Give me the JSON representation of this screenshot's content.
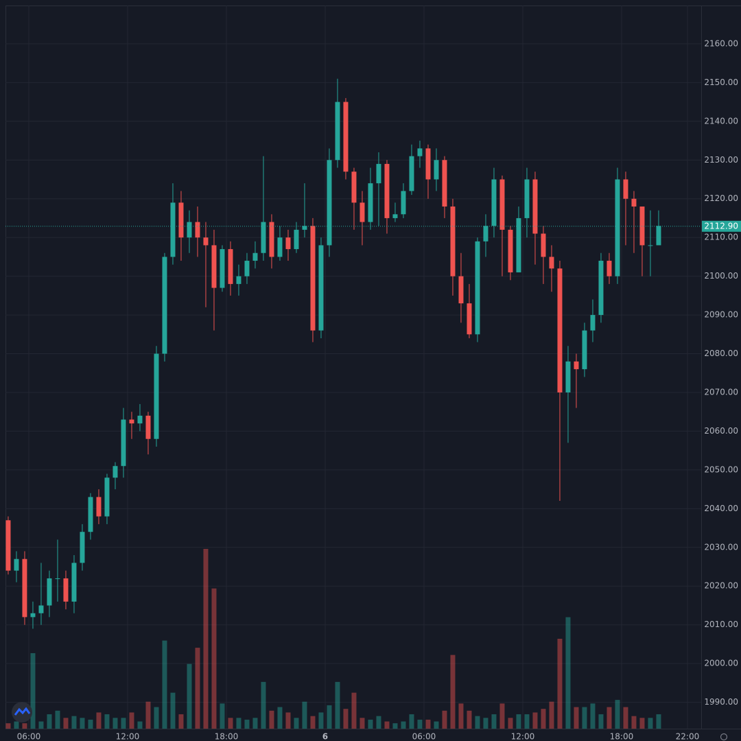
{
  "chart_data": {
    "type": "candlestick",
    "xlim": [
      -0.33,
      84.17
    ],
    "ylim": [
      1983.2,
      2169.9
    ],
    "xticks": [
      {
        "value": 2.5,
        "label": "06:00"
      },
      {
        "value": 14.5,
        "label": "12:00"
      },
      {
        "value": 26.5,
        "label": "18:00"
      },
      {
        "value": 38.5,
        "label": "6"
      },
      {
        "value": 50.5,
        "label": "06:00"
      },
      {
        "value": 62.5,
        "label": "12:00"
      },
      {
        "value": 74.5,
        "label": "18:00"
      },
      {
        "value": 82.5,
        "label": "22:00"
      }
    ],
    "yticks": [
      {
        "value": 1990,
        "label": "1990.00"
      },
      {
        "value": 2000,
        "label": "2000.00"
      },
      {
        "value": 2010,
        "label": "2010.00"
      },
      {
        "value": 2020,
        "label": "2020.00"
      },
      {
        "value": 2030,
        "label": "2030.00"
      },
      {
        "value": 2040,
        "label": "2040.00"
      },
      {
        "value": 2050,
        "label": "2050.00"
      },
      {
        "value": 2060,
        "label": "2060.00"
      },
      {
        "value": 2070,
        "label": "2070.00"
      },
      {
        "value": 2080,
        "label": "2080.00"
      },
      {
        "value": 2090,
        "label": "2090.00"
      },
      {
        "value": 2100,
        "label": "2100.00"
      },
      {
        "value": 2110,
        "label": "2110.00"
      },
      {
        "value": 2120,
        "label": "2120.00"
      },
      {
        "value": 2130,
        "label": "2130.00"
      },
      {
        "value": 2140,
        "label": "2140.00"
      },
      {
        "value": 2150,
        "label": "2150.00"
      },
      {
        "value": 2160,
        "label": "2160.00"
      }
    ],
    "grid": true,
    "up_color": "#26a69a",
    "down_color": "#ef5350",
    "last_price": {
      "value": 2112.9,
      "label": "2112.90"
    },
    "open": [
      2037,
      2024,
      2027,
      2012,
      2013,
      2015,
      2022,
      2022,
      2016,
      2026,
      2034,
      2043,
      2038,
      2048,
      2051,
      2063,
      2062,
      2064,
      2058,
      2080,
      2105,
      2119,
      2110,
      2114,
      2110,
      2108,
      2097,
      2107,
      2098,
      2100,
      2104,
      2106,
      2114,
      2105,
      2110,
      2107,
      2112,
      2113,
      2086,
      2108,
      2130,
      2145,
      2127,
      2119,
      2114,
      2124,
      2129,
      2115,
      2116,
      2122,
      2131,
      2133,
      2125,
      2130,
      2118,
      2100,
      2093,
      2085,
      2109,
      2113,
      2125,
      2112,
      2101,
      2115,
      2125,
      2111,
      2105,
      2102,
      2070,
      2078,
      2076,
      2086,
      2090,
      2104,
      2100,
      2125,
      2120,
      2118,
      2108,
      2108
    ],
    "high": [
      2038,
      2029,
      2029,
      2016,
      2026,
      2024,
      2032,
      2024,
      2028,
      2036,
      2044,
      2045,
      2049,
      2052,
      2066,
      2065,
      2067,
      2065,
      2082,
      2106,
      2124,
      2122,
      2117,
      2118,
      2114,
      2112,
      2108,
      2109,
      2103,
      2106,
      2109,
      2131,
      2116,
      2113,
      2112,
      2114,
      2124,
      2115,
      2110,
      2133,
      2151,
      2146,
      2128,
      2122,
      2128,
      2132,
      2130,
      2119,
      2124,
      2134,
      2135,
      2134,
      2133,
      2131,
      2120,
      2106,
      2098,
      2110,
      2116,
      2128,
      2126,
      2113,
      2118,
      2128,
      2127,
      2113,
      2108,
      2104,
      2082,
      2080,
      2088,
      2094,
      2106,
      2106,
      2128,
      2127,
      2122,
      2118,
      2117,
      2117
    ],
    "low": [
      2023,
      2021,
      2010,
      2009,
      2010,
      2012,
      2016,
      2014,
      2013,
      2024,
      2032,
      2036,
      2036,
      2045,
      2048,
      2058,
      2060,
      2054,
      2056,
      2078,
      2103,
      2104,
      2106,
      2105,
      2092,
      2086,
      2096,
      2095,
      2095,
      2098,
      2102,
      2104,
      2102,
      2104,
      2104,
      2106,
      2110,
      2083,
      2084,
      2105,
      2128,
      2125,
      2112,
      2108,
      2112,
      2113,
      2111,
      2114,
      2115,
      2121,
      2128,
      2120,
      2122,
      2115,
      2095,
      2088,
      2084,
      2083,
      2105,
      2110,
      2100,
      2099,
      2101,
      2110,
      2103,
      2098,
      2096,
      2042,
      2057,
      2066,
      2074,
      2083,
      2088,
      2098,
      2098,
      2108,
      2106,
      2100,
      2100,
      2109
    ],
    "close": [
      2024,
      2027,
      2012,
      2013,
      2015,
      2022,
      2022,
      2016,
      2026,
      2034,
      2043,
      2038,
      2048,
      2051,
      2063,
      2062,
      2064,
      2058,
      2080,
      2105,
      2119,
      2110,
      2114,
      2110,
      2108,
      2097,
      2107,
      2098,
      2100,
      2104,
      2106,
      2114,
      2105,
      2110,
      2107,
      2112,
      2113,
      2086,
      2108,
      2130,
      2145,
      2127,
      2119,
      2114,
      2124,
      2129,
      2115,
      2116,
      2122,
      2131,
      2133,
      2125,
      2130,
      2118,
      2100,
      2093,
      2085,
      2109,
      2113,
      2125,
      2112,
      2101,
      2115,
      2125,
      2111,
      2105,
      2102,
      2070,
      2078,
      2076,
      2086,
      2090,
      2104,
      2100,
      2125,
      2120,
      2118,
      2108,
      2108,
      2113
    ],
    "volume": [
      3,
      4,
      3,
      42,
      4,
      8,
      10,
      6,
      7,
      6,
      5,
      9,
      8,
      6,
      6,
      9,
      4,
      15,
      12,
      49,
      20,
      8,
      36,
      45,
      100,
      78,
      14,
      6,
      6,
      5,
      6,
      26,
      10,
      12,
      9,
      6,
      15,
      7,
      9,
      13,
      26,
      11,
      20,
      6,
      5,
      7,
      4,
      3,
      4,
      8,
      5,
      5,
      4,
      10,
      41,
      14,
      10,
      7,
      6,
      8,
      14,
      6,
      8,
      8,
      9,
      11,
      15,
      50,
      62,
      12,
      12,
      14,
      8,
      12,
      16,
      12,
      7,
      6,
      6,
      8
    ]
  }
}
